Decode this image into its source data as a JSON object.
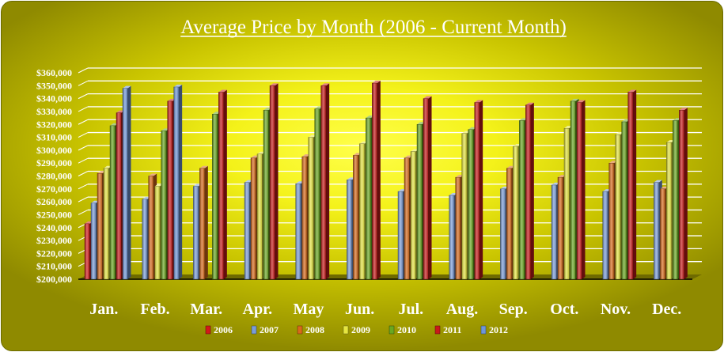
{
  "chart_data": {
    "type": "bar",
    "title": "Average Price by Month (2006 - Current Month)",
    "xlabel": "",
    "ylabel": "",
    "ylim": [
      200000,
      360000
    ],
    "ytick_step": 10000,
    "ytick_labels": [
      "$200,000",
      "$210,000",
      "$220,000",
      "$230,000",
      "$240,000",
      "$250,000",
      "$260,000",
      "$270,000",
      "$280,000",
      "$290,000",
      "$300,000",
      "$310,000",
      "$320,000",
      "$330,000",
      "$340,000",
      "$350,000",
      "$360,000"
    ],
    "grid": true,
    "legend_position": "bottom",
    "categories": [
      "Jan.",
      "Feb.",
      "Mar.",
      "Apr.",
      "May",
      "Jun.",
      "Jul.",
      "Aug.",
      "Sep.",
      "Oct.",
      "Nov.",
      "Dec."
    ],
    "series": [
      {
        "name": "2006",
        "color": "#d21a1a",
        "values": [
          243000,
          null,
          null,
          null,
          null,
          null,
          null,
          null,
          null,
          null,
          null,
          null
        ]
      },
      {
        "name": "2007",
        "color": "#7a9cd8",
        "values": [
          259000,
          262000,
          272000,
          275000,
          274000,
          277000,
          268000,
          265000,
          270000,
          273000,
          268000,
          275000
        ]
      },
      {
        "name": "2008",
        "color": "#d86a1a",
        "values": [
          282000,
          280000,
          286000,
          294000,
          295000,
          296000,
          294000,
          279000,
          286000,
          279000,
          290000,
          270000
        ]
      },
      {
        "name": "2009",
        "color": "#e6e640",
        "values": [
          286000,
          272000,
          null,
          297000,
          310000,
          305000,
          299000,
          313000,
          303000,
          317000,
          312000,
          306000
        ]
      },
      {
        "name": "2010",
        "color": "#6aa820",
        "values": [
          319000,
          315000,
          328000,
          331000,
          332000,
          325000,
          320000,
          316000,
          323000,
          338000,
          322000,
          323000
        ]
      },
      {
        "name": "2011",
        "color": "#c81a1a",
        "values": [
          329000,
          338000,
          345000,
          350000,
          350000,
          352000,
          340000,
          337000,
          335000,
          337000,
          345000,
          331000
        ]
      },
      {
        "name": "2012",
        "color": "#6f96d8",
        "values": [
          348000,
          349000,
          null,
          null,
          null,
          null,
          null,
          null,
          null,
          null,
          null,
          null
        ]
      }
    ]
  }
}
